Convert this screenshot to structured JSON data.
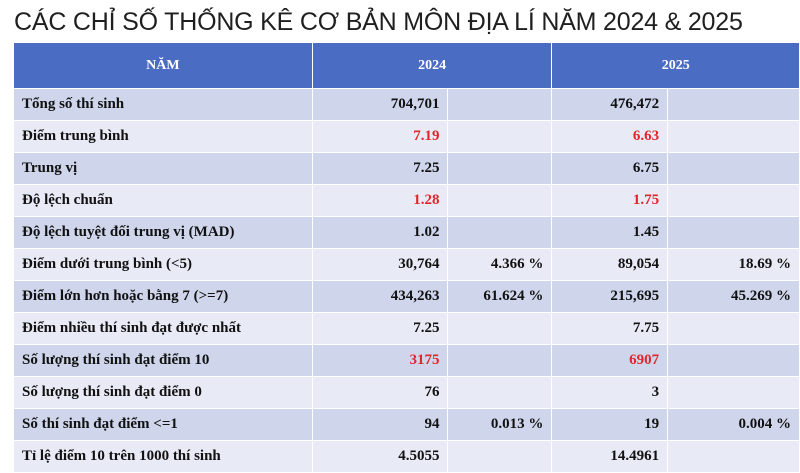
{
  "title": "CÁC CHỈ SỐ THỐNG KÊ CƠ BẢN MÔN ĐỊA LÍ NĂM 2024 & 2025",
  "table": {
    "header": [
      "NĂM",
      "2024",
      "2025"
    ],
    "highlight_color": "#e0262b",
    "rows": [
      {
        "label": "Tổng số thí sinh",
        "cells": [
          "704,701",
          null,
          "476,472",
          null
        ]
      },
      {
        "label": "Điểm trung bình",
        "cells": [
          "7.19",
          null,
          "6.63",
          null
        ],
        "highlight": true
      },
      {
        "label": "Trung vị",
        "cells": [
          "7.25",
          null,
          "6.75",
          null
        ]
      },
      {
        "label": "Độ lệch chuẩn",
        "cells": [
          "1.28",
          null,
          "1.75",
          null
        ],
        "highlight": true
      },
      {
        "label": "Độ lệch tuyệt đối trung vị (MAD)",
        "cells": [
          "1.02",
          null,
          "1.45",
          null
        ]
      },
      {
        "label": "Điểm dưới trung bình (<5)",
        "cells": [
          "30,764",
          "4.366 %",
          "89,054",
          "18.69 %"
        ]
      },
      {
        "label": "Điểm lớn hơn hoặc bằng 7 (>=7)",
        "cells": [
          "434,263",
          "61.624 %",
          "215,695",
          "45.269 %"
        ]
      },
      {
        "label": "Điểm nhiều thí sinh đạt được nhất",
        "cells": [
          "7.25",
          null,
          "7.75",
          null
        ]
      },
      {
        "label": "Số lượng thí sinh đạt điểm 10",
        "cells": [
          "3175",
          null,
          "6907",
          null
        ],
        "highlight": true
      },
      {
        "label": "Số lượng thí sinh đạt điểm 0",
        "cells": [
          "76",
          null,
          "3",
          null
        ]
      },
      {
        "label": "Số thí sinh đạt điểm <=1",
        "cells": [
          "94",
          "0.013 %",
          "19",
          "0.004 %"
        ]
      },
      {
        "label": "Tỉ lệ điểm 10 trên 1000 thí sinh",
        "cells": [
          "4.5055",
          null,
          "14.4961",
          null
        ]
      }
    ]
  }
}
